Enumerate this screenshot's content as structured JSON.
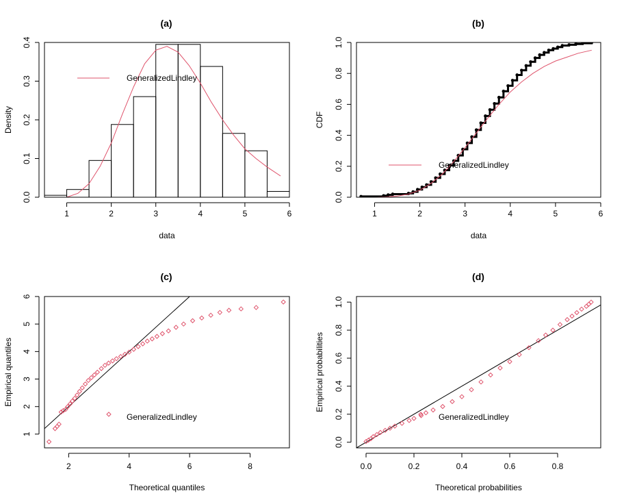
{
  "colors": {
    "fit": "#DF536B",
    "data": "#000000",
    "frame": "#000000",
    "background": "#FFFFFF"
  },
  "legend_text": "GeneralizedLindley",
  "chart_data": [
    {
      "id": "a",
      "type": "histogram",
      "title": "(a)",
      "xlabel": "data",
      "ylabel": "Density",
      "xlim": [
        0.5,
        6
      ],
      "ylim": [
        0,
        0.4
      ],
      "xticks": [
        "1",
        "2",
        "3",
        "4",
        "5",
        "6"
      ],
      "yticks": [
        "0.0",
        "0.1",
        "0.2",
        "0.3",
        "0.4"
      ],
      "bins": [
        {
          "x0": 0.5,
          "x1": 1.0,
          "density": 0.005
        },
        {
          "x0": 1.0,
          "x1": 1.5,
          "density": 0.02
        },
        {
          "x0": 1.5,
          "x1": 2.0,
          "density": 0.095
        },
        {
          "x0": 2.0,
          "x1": 2.5,
          "density": 0.188
        },
        {
          "x0": 2.5,
          "x1": 3.0,
          "density": 0.26
        },
        {
          "x0": 3.0,
          "x1": 3.5,
          "density": 0.395
        },
        {
          "x0": 3.5,
          "x1": 4.0,
          "density": 0.395
        },
        {
          "x0": 4.0,
          "x1": 4.5,
          "density": 0.338
        },
        {
          "x0": 4.5,
          "x1": 5.0,
          "density": 0.165
        },
        {
          "x0": 5.0,
          "x1": 5.5,
          "density": 0.12
        },
        {
          "x0": 5.5,
          "x1": 6.0,
          "density": 0.015
        }
      ],
      "fit_curve": {
        "name": "GeneralizedLindley",
        "x": [
          1.0,
          1.25,
          1.5,
          1.75,
          2.0,
          2.25,
          2.5,
          2.75,
          3.0,
          3.25,
          3.5,
          3.75,
          4.0,
          4.25,
          4.5,
          4.75,
          5.0,
          5.25,
          5.5,
          5.8
        ],
        "y": [
          0.0,
          0.01,
          0.035,
          0.08,
          0.14,
          0.215,
          0.285,
          0.345,
          0.38,
          0.39,
          0.375,
          0.34,
          0.295,
          0.245,
          0.2,
          0.16,
          0.125,
          0.1,
          0.078,
          0.055
        ]
      },
      "legend": "top-left"
    },
    {
      "id": "b",
      "type": "line",
      "title": "(b)",
      "xlabel": "data",
      "ylabel": "CDF",
      "xlim": [
        0.6,
        6
      ],
      "ylim": [
        0,
        1
      ],
      "xticks": [
        "1",
        "2",
        "3",
        "4",
        "5",
        "6"
      ],
      "yticks": [
        "0.0",
        "0.2",
        "0.4",
        "0.6",
        "0.8",
        "1.0"
      ],
      "empirical": {
        "x": [
          0.7,
          1.2,
          1.3,
          1.4,
          1.75,
          1.85,
          1.95,
          2.05,
          2.15,
          2.25,
          2.35,
          2.45,
          2.55,
          2.65,
          2.75,
          2.85,
          2.95,
          3.05,
          3.15,
          3.25,
          3.35,
          3.45,
          3.55,
          3.65,
          3.75,
          3.85,
          3.95,
          4.05,
          4.15,
          4.25,
          4.35,
          4.45,
          4.55,
          4.65,
          4.75,
          4.85,
          4.95,
          5.05,
          5.15,
          5.3,
          5.45,
          5.6,
          5.8
        ],
        "y": [
          0.005,
          0.01,
          0.015,
          0.02,
          0.025,
          0.035,
          0.05,
          0.065,
          0.08,
          0.1,
          0.125,
          0.15,
          0.175,
          0.205,
          0.235,
          0.27,
          0.31,
          0.35,
          0.39,
          0.435,
          0.48,
          0.525,
          0.565,
          0.605,
          0.645,
          0.685,
          0.72,
          0.755,
          0.79,
          0.82,
          0.85,
          0.875,
          0.9,
          0.92,
          0.935,
          0.95,
          0.96,
          0.97,
          0.98,
          0.985,
          0.99,
          0.995,
          1.0
        ]
      },
      "fit_curve": {
        "name": "GeneralizedLindley",
        "x": [
          1.0,
          1.25,
          1.5,
          1.75,
          2.0,
          2.25,
          2.5,
          2.75,
          3.0,
          3.25,
          3.5,
          3.75,
          4.0,
          4.25,
          4.5,
          4.75,
          5.0,
          5.25,
          5.5,
          5.8
        ],
        "y": [
          0.0,
          0.002,
          0.007,
          0.02,
          0.045,
          0.09,
          0.15,
          0.23,
          0.32,
          0.415,
          0.51,
          0.6,
          0.68,
          0.745,
          0.8,
          0.845,
          0.88,
          0.905,
          0.93,
          0.95
        ]
      },
      "legend": "bottom-left"
    },
    {
      "id": "c",
      "type": "scatter",
      "title": "(c)",
      "xlabel": "Theoretical quantiles",
      "ylabel": "Empirical quantiles",
      "xlim": [
        1.2,
        9.3
      ],
      "ylim": [
        0.5,
        6
      ],
      "xticks": [
        "2",
        "4",
        "6",
        "8"
      ],
      "yticks": [
        "1",
        "2",
        "3",
        "4",
        "5",
        "6"
      ],
      "points": {
        "x": [
          1.35,
          1.55,
          1.62,
          1.68,
          1.75,
          1.82,
          1.9,
          1.97,
          2.05,
          2.12,
          2.2,
          2.28,
          2.36,
          2.45,
          2.55,
          2.65,
          2.75,
          2.85,
          2.95,
          3.08,
          3.2,
          3.32,
          3.45,
          3.58,
          3.72,
          3.86,
          4.0,
          4.15,
          4.3,
          4.45,
          4.6,
          4.76,
          4.92,
          5.1,
          5.3,
          5.55,
          5.8,
          6.1,
          6.4,
          6.7,
          7.0,
          7.3,
          7.7,
          8.2,
          9.1
        ],
        "y": [
          0.72,
          1.2,
          1.28,
          1.36,
          1.8,
          1.85,
          1.9,
          2.0,
          2.1,
          2.2,
          2.3,
          2.42,
          2.55,
          2.68,
          2.82,
          2.95,
          3.05,
          3.15,
          3.25,
          3.38,
          3.5,
          3.58,
          3.66,
          3.74,
          3.82,
          3.9,
          3.98,
          4.08,
          4.18,
          4.28,
          4.38,
          4.46,
          4.55,
          4.65,
          4.75,
          4.88,
          5.0,
          5.12,
          5.22,
          5.32,
          5.42,
          5.5,
          5.55,
          5.6,
          5.8
        ]
      },
      "reference_line": {
        "slope": 1,
        "intercept": 0
      },
      "legend": "bottom-center"
    },
    {
      "id": "d",
      "type": "scatter",
      "title": "(d)",
      "xlabel": "Theoretical probabilities",
      "ylabel": "Empirical probabilities",
      "xlim": [
        -0.04,
        0.98
      ],
      "ylim": [
        -0.04,
        1.04
      ],
      "xticks": [
        "0.0",
        "0.2",
        "0.4",
        "0.6",
        "0.8"
      ],
      "yticks": [
        "0.0",
        "0.2",
        "0.4",
        "0.6",
        "0.8",
        "1.0"
      ],
      "points": {
        "x": [
          0.0,
          0.01,
          0.02,
          0.03,
          0.045,
          0.06,
          0.08,
          0.1,
          0.12,
          0.15,
          0.18,
          0.2,
          0.23,
          0.25,
          0.28,
          0.32,
          0.36,
          0.4,
          0.44,
          0.48,
          0.52,
          0.56,
          0.6,
          0.64,
          0.68,
          0.72,
          0.75,
          0.78,
          0.81,
          0.84,
          0.86,
          0.88,
          0.9,
          0.92,
          0.93,
          0.94
        ],
        "y": [
          0.005,
          0.015,
          0.025,
          0.04,
          0.055,
          0.07,
          0.085,
          0.1,
          0.115,
          0.135,
          0.155,
          0.17,
          0.19,
          0.21,
          0.23,
          0.255,
          0.29,
          0.325,
          0.375,
          0.43,
          0.48,
          0.53,
          0.575,
          0.625,
          0.675,
          0.725,
          0.765,
          0.8,
          0.84,
          0.875,
          0.9,
          0.925,
          0.95,
          0.97,
          0.985,
          1.0
        ]
      },
      "reference_line": {
        "slope": 1,
        "intercept": 0
      },
      "legend": "bottom-center"
    }
  ]
}
